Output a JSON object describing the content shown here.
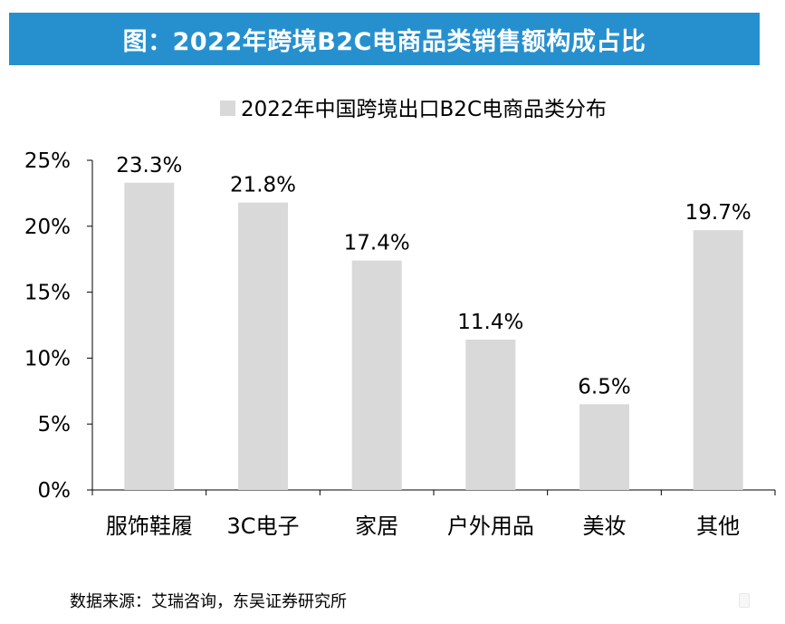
{
  "header": {
    "title": "图：2022年跨境B2C电商品类销售额构成占比"
  },
  "source": "数据来源：艾瑞咨询，东吴证券研究所",
  "chart_data": {
    "type": "bar",
    "title": "",
    "legend": {
      "label": "2022年中国跨境出口B2C电商品类分布",
      "position": "top"
    },
    "categories": [
      "服饰鞋履",
      "3C电子",
      "家居",
      "户外用品",
      "美妆",
      "其他"
    ],
    "series": [
      {
        "name": "2022年中国跨境出口B2C电商品类分布",
        "values": [
          23.3,
          21.8,
          17.4,
          11.4,
          6.5,
          19.7
        ],
        "data_labels": [
          "23.3%",
          "21.8%",
          "17.4%",
          "11.4%",
          "6.5%",
          "19.7%"
        ]
      }
    ],
    "ylim": [
      0,
      25
    ],
    "yticks": [
      0,
      5,
      10,
      15,
      20,
      25
    ],
    "ytick_labels": [
      "0%",
      "5%",
      "10%",
      "15%",
      "20%",
      "25%"
    ],
    "xlabel": "",
    "ylabel": "",
    "grid": false,
    "bar_color": "#d9d9d9",
    "title_bar_color": "#2690cf"
  }
}
